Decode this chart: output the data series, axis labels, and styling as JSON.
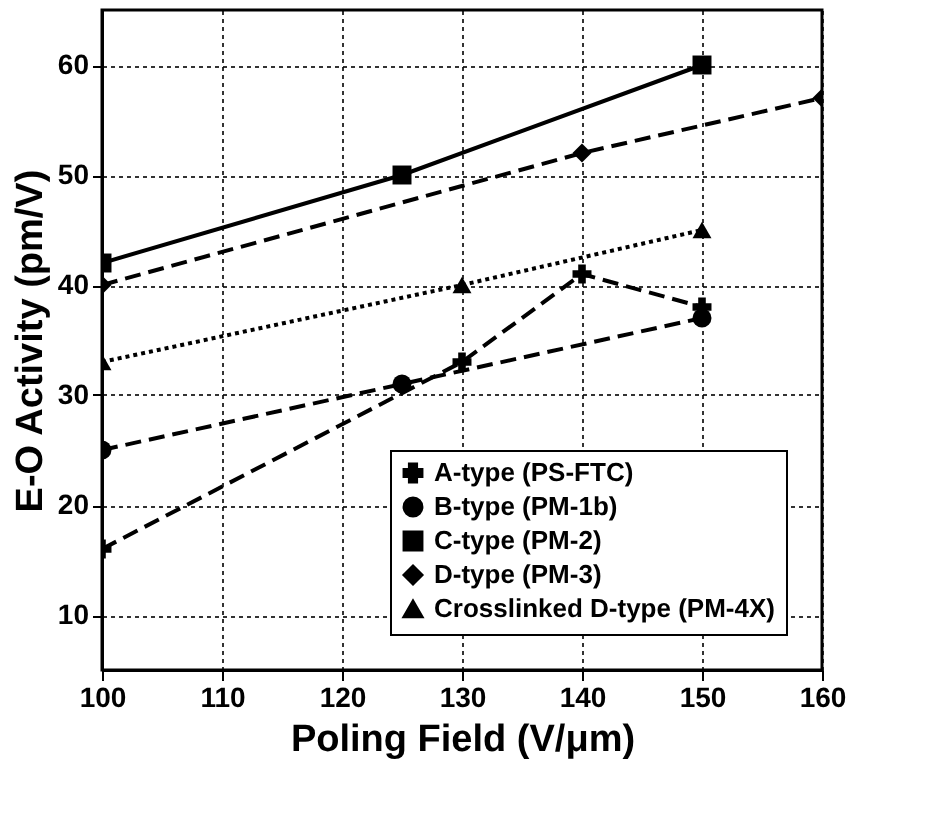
{
  "chart_data": {
    "type": "line",
    "xlabel": "Poling Field (V/μm)",
    "ylabel": "E-O Activity (pm/V)",
    "xlim": [
      100,
      160
    ],
    "xticks": [
      100,
      110,
      120,
      130,
      140,
      150,
      160
    ],
    "ylim": [
      5,
      65
    ],
    "yticks": [
      10,
      20,
      30,
      40,
      50,
      60
    ],
    "grid": true,
    "legend": "bottom right",
    "series": [
      {
        "name": "A-type (PS-FTC)",
        "color": "#000000",
        "marker": "cross",
        "line_style": "dashed",
        "x": [
          100,
          130,
          140,
          150
        ],
        "values": [
          16,
          33,
          41,
          38
        ]
      },
      {
        "name": "B-type (PM-1b)",
        "color": "#000000",
        "marker": "circle",
        "line_style": "dashed",
        "x": [
          100,
          125,
          150
        ],
        "values": [
          25,
          31,
          37
        ]
      },
      {
        "name": "C-type (PM-2)",
        "color": "#000000",
        "marker": "square",
        "line_style": "solid",
        "x": [
          100,
          125,
          150
        ],
        "values": [
          42,
          50,
          60
        ]
      },
      {
        "name": "D-type (PM-3)",
        "color": "#000000",
        "marker": "diamond",
        "line_style": "dashed",
        "x": [
          100,
          140,
          160
        ],
        "values": [
          40,
          52,
          57
        ]
      },
      {
        "name": "Crosslinked D-type (PM-4X)",
        "color": "#000000",
        "marker": "triangle",
        "line_style": "dotted",
        "x": [
          100,
          130,
          150
        ],
        "values": [
          33,
          40,
          45
        ]
      }
    ]
  }
}
